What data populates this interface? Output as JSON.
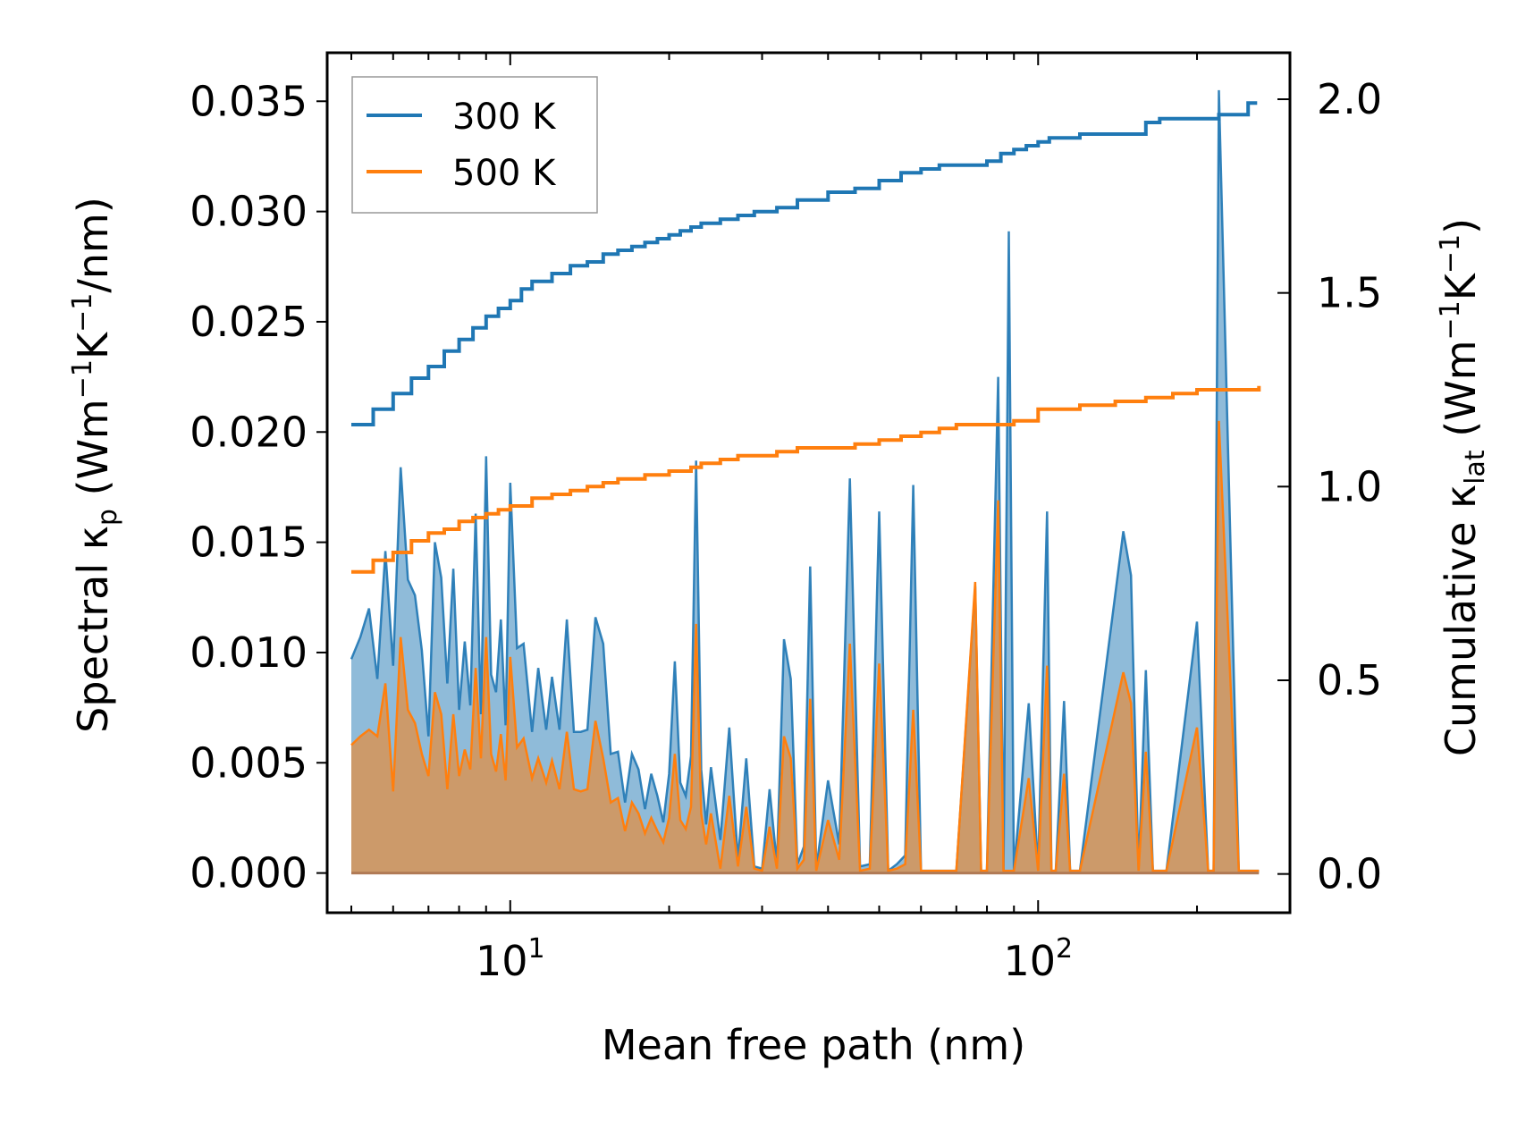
{
  "chart_data": {
    "type": "line+area",
    "xscale": "log",
    "xlabel": "Mean free path (nm)",
    "ylabel_left": {
      "prefix": "Spectral κ",
      "sub": "p",
      "mid": " (Wm",
      "sup1": "−1",
      "k": "K",
      "sup2": "−1",
      "suffix": "/nm)"
    },
    "ylabel_right": {
      "prefix": "Cumulative κ",
      "sub": "lat",
      "mid": " (Wm",
      "sup1": "−1",
      "k": "K",
      "sup2": "−1",
      "suffix": ")"
    },
    "xlim": [
      4.5,
      300
    ],
    "ylim_left": [
      -0.0018,
      0.0372
    ],
    "ylim_right": [
      -0.1,
      2.12
    ],
    "x_ticks": [
      {
        "value": 10,
        "base": "10",
        "exp": "1"
      },
      {
        "value": 100,
        "base": "10",
        "exp": "2"
      }
    ],
    "y_ticks_left": [
      {
        "value": 0.0,
        "label": "0.000"
      },
      {
        "value": 0.005,
        "label": "0.005"
      },
      {
        "value": 0.01,
        "label": "0.010"
      },
      {
        "value": 0.015,
        "label": "0.015"
      },
      {
        "value": 0.02,
        "label": "0.020"
      },
      {
        "value": 0.025,
        "label": "0.025"
      },
      {
        "value": 0.03,
        "label": "0.030"
      },
      {
        "value": 0.035,
        "label": "0.035"
      }
    ],
    "y_ticks_right": [
      {
        "value": 0.0,
        "label": "0.0"
      },
      {
        "value": 0.5,
        "label": "0.5"
      },
      {
        "value": 1.0,
        "label": "1.0"
      },
      {
        "value": 1.5,
        "label": "1.5"
      },
      {
        "value": 2.0,
        "label": "2.0"
      }
    ],
    "legend": {
      "position": "top-left",
      "entries": [
        {
          "label": "300 K",
          "color": "#1f77b4"
        },
        {
          "label": "500 K",
          "color": "#ff7f0e"
        }
      ]
    },
    "series": [
      {
        "name": "300 K",
        "color": "#1f77b4",
        "fill": "#1f77b4",
        "cumulative": {
          "x": [
            5.0,
            5.5,
            6.0,
            6.5,
            7.0,
            7.5,
            8.0,
            8.5,
            9.0,
            9.5,
            10.0,
            10.5,
            11.0,
            12.0,
            13.0,
            14.0,
            15.0,
            16.0,
            17.0,
            18.0,
            19.0,
            20.0,
            21.0,
            22.0,
            23.0,
            25.0,
            27.0,
            29.0,
            32.0,
            35.0,
            40.0,
            45.0,
            50.0,
            55.0,
            60.0,
            65.0,
            70.0,
            75.0,
            80.0,
            85.0,
            90.0,
            95.0,
            100.0,
            105.0,
            110.0,
            120.0,
            130.0,
            140.0,
            150.0,
            160.0,
            170.0,
            180.0,
            200.0,
            220.0,
            240.0,
            250.0,
            260.0
          ],
          "y": [
            1.16,
            1.2,
            1.24,
            1.28,
            1.31,
            1.35,
            1.38,
            1.41,
            1.44,
            1.46,
            1.48,
            1.51,
            1.53,
            1.55,
            1.57,
            1.58,
            1.6,
            1.61,
            1.62,
            1.63,
            1.64,
            1.65,
            1.66,
            1.67,
            1.68,
            1.69,
            1.7,
            1.71,
            1.72,
            1.74,
            1.76,
            1.77,
            1.79,
            1.81,
            1.82,
            1.83,
            1.83,
            1.83,
            1.84,
            1.86,
            1.87,
            1.88,
            1.89,
            1.9,
            1.9,
            1.91,
            1.91,
            1.91,
            1.91,
            1.94,
            1.95,
            1.95,
            1.95,
            1.96,
            1.96,
            1.99,
            1.99
          ]
        },
        "spectral": {
          "x": [
            5.0,
            5.2,
            5.4,
            5.6,
            5.8,
            6.0,
            6.2,
            6.4,
            6.6,
            6.8,
            7.0,
            7.2,
            7.4,
            7.6,
            7.8,
            8.0,
            8.2,
            8.4,
            8.6,
            8.8,
            9.0,
            9.2,
            9.4,
            9.6,
            9.8,
            10.0,
            10.3,
            10.6,
            11.0,
            11.3,
            11.7,
            12.0,
            12.4,
            12.8,
            13.2,
            13.6,
            14.0,
            14.5,
            15.0,
            15.5,
            16.0,
            16.5,
            17.0,
            17.5,
            18.0,
            18.5,
            19.0,
            19.5,
            20.0,
            20.5,
            21.0,
            21.5,
            22.0,
            22.5,
            23.0,
            23.5,
            24.0,
            25.0,
            26.0,
            27.0,
            28.0,
            29.0,
            30.0,
            31.0,
            32.0,
            33.0,
            34.0,
            35.0,
            36.0,
            37.0,
            38.0,
            40.0,
            42.0,
            44.0,
            46.0,
            48.0,
            50.0,
            52.0,
            54.0,
            56.0,
            58.0,
            60.0,
            70.0,
            76.0,
            78.0,
            80.0,
            84.0,
            86.0,
            88.0,
            90.0,
            96.0,
            100.0,
            104.0,
            106.0,
            108.0,
            112.0,
            115.0,
            120.0,
            145.0,
            150.0,
            155.0,
            160.0,
            165.0,
            170.0,
            175.0,
            200.0,
            210.0,
            215.0,
            220.0,
            240.0,
            250.0,
            255.0,
            260.0,
            262.0
          ],
          "y": [
            0.0097,
            0.0107,
            0.012,
            0.0088,
            0.0146,
            0.0094,
            0.0184,
            0.0133,
            0.0126,
            0.0101,
            0.0062,
            0.015,
            0.0134,
            0.0086,
            0.0138,
            0.0074,
            0.0105,
            0.0076,
            0.0163,
            0.0072,
            0.0189,
            0.009,
            0.0082,
            0.0115,
            0.0067,
            0.0177,
            0.0102,
            0.0104,
            0.0064,
            0.0093,
            0.0065,
            0.0089,
            0.0065,
            0.0115,
            0.0064,
            0.0064,
            0.0065,
            0.0116,
            0.0104,
            0.0054,
            0.0055,
            0.0032,
            0.0054,
            0.0047,
            0.0029,
            0.0045,
            0.0035,
            0.0023,
            0.0045,
            0.0096,
            0.0041,
            0.0035,
            0.0053,
            0.0187,
            0.0047,
            0.0022,
            0.0048,
            0.0015,
            0.0066,
            0.0006,
            0.0052,
            0.0003,
            0.0002,
            0.0038,
            0.0004,
            0.0106,
            0.0088,
            0.0004,
            0.0012,
            0.0139,
            0.0002,
            0.0042,
            0.0013,
            0.0179,
            0.0003,
            0.0004,
            0.0164,
            0.0001,
            0.0004,
            0.0008,
            0.0176,
            0.0001,
            0.0001,
            0.013,
            0.0001,
            0.0001,
            0.0225,
            0.0001,
            0.0291,
            0.0001,
            0.0077,
            0.0001,
            0.0164,
            0.0001,
            0.0001,
            0.0078,
            0.0001,
            0.0001,
            0.0155,
            0.0135,
            0.0001,
            0.0092,
            0.0001,
            0.0001,
            0.0001,
            0.0114,
            0.0001,
            0.0001,
            0.0355,
            0.0001,
            0.0001,
            0.0001,
            0.0001,
            0.0001
          ]
        }
      },
      {
        "name": "500 K",
        "color": "#ff7f0e",
        "fill": "#ff7f0e",
        "cumulative": {
          "x": [
            5.0,
            5.5,
            6.0,
            6.5,
            7.0,
            7.5,
            8.0,
            8.5,
            9.0,
            9.5,
            10.0,
            11.0,
            12.0,
            13.0,
            14.0,
            15.0,
            16.0,
            18.0,
            20.0,
            22.0,
            23.0,
            25.0,
            27.0,
            29.0,
            32.0,
            35.0,
            40.0,
            45.0,
            50.0,
            55.0,
            60.0,
            65.0,
            70.0,
            80.0,
            90.0,
            100.0,
            110.0,
            120.0,
            140.0,
            150.0,
            160.0,
            180.0,
            200.0,
            240.0,
            250.0,
            262.0
          ],
          "y": [
            0.78,
            0.81,
            0.83,
            0.86,
            0.88,
            0.89,
            0.91,
            0.92,
            0.93,
            0.94,
            0.95,
            0.97,
            0.98,
            0.99,
            1.0,
            1.01,
            1.02,
            1.03,
            1.04,
            1.05,
            1.06,
            1.07,
            1.08,
            1.08,
            1.09,
            1.1,
            1.1,
            1.11,
            1.12,
            1.13,
            1.14,
            1.15,
            1.16,
            1.16,
            1.17,
            1.2,
            1.2,
            1.21,
            1.22,
            1.22,
            1.23,
            1.24,
            1.25,
            1.25,
            1.25,
            1.26
          ]
        },
        "spectral": {
          "x": [
            5.0,
            5.2,
            5.4,
            5.6,
            5.8,
            6.0,
            6.2,
            6.4,
            6.6,
            6.8,
            7.0,
            7.2,
            7.4,
            7.6,
            7.8,
            8.0,
            8.2,
            8.4,
            8.6,
            8.8,
            9.0,
            9.2,
            9.4,
            9.6,
            9.8,
            10.0,
            10.3,
            10.6,
            11.0,
            11.3,
            11.7,
            12.0,
            12.4,
            12.8,
            13.2,
            13.6,
            14.0,
            14.5,
            15.0,
            15.5,
            16.0,
            16.5,
            17.0,
            17.5,
            18.0,
            18.5,
            19.0,
            19.5,
            20.0,
            20.5,
            21.0,
            21.5,
            22.0,
            22.5,
            23.0,
            23.5,
            24.0,
            25.0,
            26.0,
            27.0,
            28.0,
            29.0,
            30.0,
            31.0,
            32.0,
            33.0,
            34.0,
            35.0,
            36.0,
            37.0,
            38.0,
            40.0,
            42.0,
            44.0,
            46.0,
            48.0,
            50.0,
            52.0,
            54.0,
            56.0,
            58.0,
            60.0,
            70.0,
            76.0,
            78.0,
            80.0,
            84.0,
            86.0,
            88.0,
            90.0,
            96.0,
            100.0,
            104.0,
            106.0,
            108.0,
            112.0,
            115.0,
            120.0,
            145.0,
            150.0,
            155.0,
            160.0,
            165.0,
            170.0,
            175.0,
            200.0,
            210.0,
            215.0,
            220.0,
            240.0,
            250.0,
            255.0,
            260.0,
            262.0
          ],
          "y": [
            0.0058,
            0.0062,
            0.0065,
            0.0062,
            0.0086,
            0.0037,
            0.0107,
            0.0074,
            0.0068,
            0.0054,
            0.0044,
            0.0082,
            0.0072,
            0.0038,
            0.0072,
            0.0044,
            0.0056,
            0.0047,
            0.0093,
            0.0052,
            0.0107,
            0.0054,
            0.0046,
            0.0063,
            0.0042,
            0.0098,
            0.0057,
            0.0061,
            0.0043,
            0.0052,
            0.0041,
            0.0051,
            0.0038,
            0.0064,
            0.0038,
            0.0037,
            0.0038,
            0.0069,
            0.0052,
            0.0032,
            0.0034,
            0.0019,
            0.0032,
            0.0027,
            0.0018,
            0.0025,
            0.0019,
            0.0014,
            0.0025,
            0.0054,
            0.0024,
            0.002,
            0.003,
            0.0113,
            0.0027,
            0.0013,
            0.0027,
            0.0002,
            0.0035,
            0.0003,
            0.003,
            0.0002,
            0.0001,
            0.0021,
            0.0002,
            0.0062,
            0.0052,
            0.0002,
            0.0006,
            0.0079,
            0.0001,
            0.0024,
            0.0006,
            0.0104,
            0.0001,
            0.0002,
            0.0095,
            0.0001,
            0.0002,
            0.0004,
            0.0074,
            0.0001,
            0.0001,
            0.0132,
            0.0001,
            0.0001,
            0.0169,
            0.0001,
            0.0001,
            0.0001,
            0.0043,
            0.0001,
            0.0094,
            0.0001,
            0.0001,
            0.0045,
            0.0001,
            0.0001,
            0.0091,
            0.0077,
            0.0001,
            0.0055,
            0.0001,
            0.0001,
            0.0001,
            0.0066,
            0.0001,
            0.0001,
            0.0205,
            0.0001,
            0.0001,
            0.0001,
            0.0001,
            0.0001
          ]
        }
      }
    ]
  }
}
